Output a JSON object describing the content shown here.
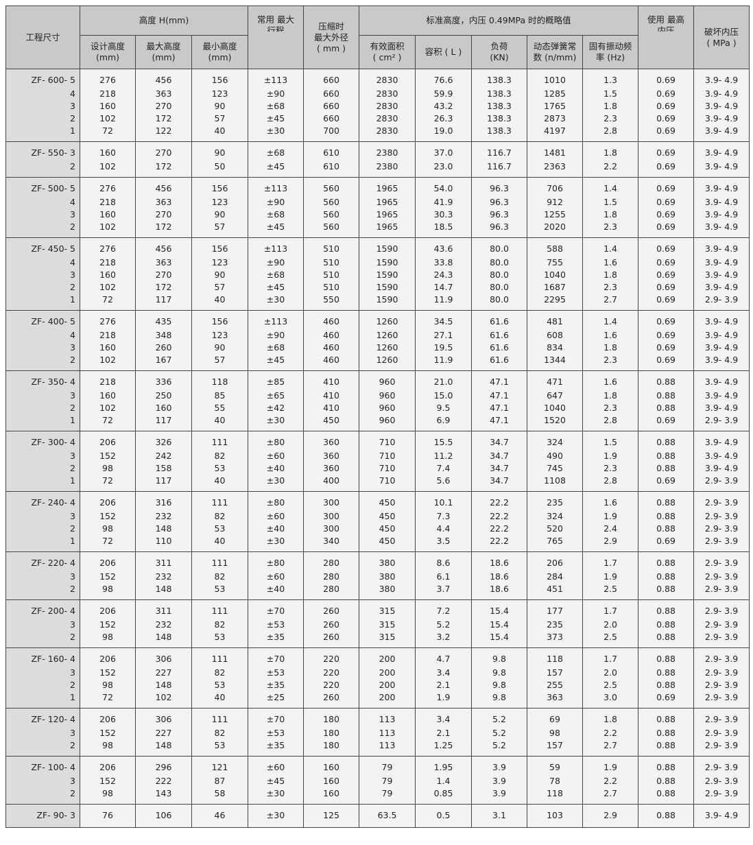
{
  "header": {
    "model": "工程尺寸",
    "height_group": "高度 H(mm)",
    "design_height": "设计高度",
    "max_height": "最大高度",
    "min_height": "最小高度",
    "mm": "(mm)",
    "stroke": "常用 最大",
    "stroke_cut": "行程",
    "max_od_1": "压缩时",
    "max_od_2": "最大外径",
    "max_od_unit": "( mm )",
    "std_group": "标准高度，内压 0.49MPa  时的概略值",
    "area": "有效面积",
    "area_unit": "( cm² )",
    "volume": "容积 ( L )",
    "load": "负荷",
    "load_unit": "(KN)",
    "spring_1": "动态弹簧常",
    "spring_2": "数 (n/mm)",
    "freq_1": "固有振动频",
    "freq_2": "率 (Hz)",
    "use_max": "使用 最高",
    "use_max_cut": "内压",
    "burst": "破坏内压",
    "burst_unit": "( MPa )"
  },
  "groups": [
    {
      "rows": [
        [
          "ZF- 600- 5",
          "276",
          "456",
          "156",
          "±113",
          "660",
          "2830",
          "76.6",
          "138.3",
          "1010",
          "1.3",
          "0.69",
          "3.9- 4.9"
        ],
        [
          "4",
          "218",
          "363",
          "123",
          "±90",
          "660",
          "2830",
          "59.9",
          "138.3",
          "1285",
          "1.5",
          "0.69",
          "3.9- 4.9"
        ],
        [
          "3",
          "160",
          "270",
          "90",
          "±68",
          "660",
          "2830",
          "43.2",
          "138.3",
          "1765",
          "1.8",
          "0.69",
          "3.9- 4.9"
        ],
        [
          "2",
          "102",
          "172",
          "57",
          "±45",
          "660",
          "2830",
          "26.3",
          "138.3",
          "2873",
          "2.3",
          "0.69",
          "3.9- 4.9"
        ],
        [
          "1",
          "72",
          "122",
          "40",
          "±30",
          "700",
          "2830",
          "19.0",
          "138.3",
          "4197",
          "2.8",
          "0.69",
          "3.9- 4.9"
        ]
      ]
    },
    {
      "rows": [
        [
          "ZF- 550- 3",
          "160",
          "270",
          "90",
          "±68",
          "610",
          "2380",
          "37.0",
          "116.7",
          "1481",
          "1.8",
          "0.69",
          "3.9- 4.9"
        ],
        [
          "2",
          "102",
          "172",
          "50",
          "±45",
          "610",
          "2380",
          "23.0",
          "116.7",
          "2363",
          "2.2",
          "0.69",
          "3.9- 4.9"
        ]
      ]
    },
    {
      "rows": [
        [
          "ZF- 500- 5",
          "276",
          "456",
          "156",
          "±113",
          "560",
          "1965",
          "54.0",
          "96.3",
          "706",
          "1.4",
          "0.69",
          "3.9- 4.9"
        ],
        [
          "4",
          "218",
          "363",
          "123",
          "±90",
          "560",
          "1965",
          "41.9",
          "96.3",
          "912",
          "1.5",
          "0.69",
          "3.9- 4.9"
        ],
        [
          "3",
          "160",
          "270",
          "90",
          "±68",
          "560",
          "1965",
          "30.3",
          "96.3",
          "1255",
          "1.8",
          "0.69",
          "3.9- 4.9"
        ],
        [
          "2",
          "102",
          "172",
          "57",
          "±45",
          "560",
          "1965",
          "18.5",
          "96.3",
          "2020",
          "2.3",
          "0.69",
          "3.9- 4.9"
        ]
      ]
    },
    {
      "rows": [
        [
          "ZF- 450- 5",
          "276",
          "456",
          "156",
          "±113",
          "510",
          "1590",
          "43.6",
          "80.0",
          "588",
          "1.4",
          "0.69",
          "3.9- 4.9"
        ],
        [
          "4",
          "218",
          "363",
          "123",
          "±90",
          "510",
          "1590",
          "33.8",
          "80.0",
          "755",
          "1.6",
          "0.69",
          "3.9- 4.9"
        ],
        [
          "3",
          "160",
          "270",
          "90",
          "±68",
          "510",
          "1590",
          "24.3",
          "80.0",
          "1040",
          "1.8",
          "0.69",
          "3.9- 4.9"
        ],
        [
          "2",
          "102",
          "172",
          "57",
          "±45",
          "510",
          "1590",
          "14.7",
          "80.0",
          "1687",
          "2.3",
          "0.69",
          "3.9- 4.9"
        ],
        [
          "1",
          "72",
          "117",
          "40",
          "±30",
          "550",
          "1590",
          "11.9",
          "80.0",
          "2295",
          "2.7",
          "0.69",
          "2.9- 3.9"
        ]
      ]
    },
    {
      "rows": [
        [
          "ZF- 400- 5",
          "276",
          "435",
          "156",
          "±113",
          "460",
          "1260",
          "34.5",
          "61.6",
          "481",
          "1.4",
          "0.69",
          "3.9- 4.9"
        ],
        [
          "4",
          "218",
          "348",
          "123",
          "±90",
          "460",
          "1260",
          "27.1",
          "61.6",
          "608",
          "1.6",
          "0.69",
          "3.9- 4.9"
        ],
        [
          "3",
          "160",
          "260",
          "90",
          "±68",
          "460",
          "1260",
          "19.5",
          "61.6",
          "834",
          "1.8",
          "0.69",
          "3.9- 4.9"
        ],
        [
          "2",
          "102",
          "167",
          "57",
          "±45",
          "460",
          "1260",
          "11.9",
          "61.6",
          "1344",
          "2.3",
          "0.69",
          "3.9- 4.9"
        ]
      ]
    },
    {
      "rows": [
        [
          "ZF- 350- 4",
          "218",
          "336",
          "118",
          "±85",
          "410",
          "960",
          "21.0",
          "47.1",
          "471",
          "1.6",
          "0.88",
          "3.9- 4.9"
        ],
        [
          "3",
          "160",
          "250",
          "85",
          "±65",
          "410",
          "960",
          "15.0",
          "47.1",
          "647",
          "1.8",
          "0.88",
          "3.9- 4.9"
        ],
        [
          "2",
          "102",
          "160",
          "55",
          "±42",
          "410",
          "960",
          "9.5",
          "47.1",
          "1040",
          "2.3",
          "0.88",
          "3.9- 4.9"
        ],
        [
          "1",
          "72",
          "117",
          "40",
          "±30",
          "450",
          "960",
          "6.9",
          "47.1",
          "1520",
          "2.8",
          "0.69",
          "2.9- 3.9"
        ]
      ]
    },
    {
      "rows": [
        [
          "ZF- 300- 4",
          "206",
          "326",
          "111",
          "±80",
          "360",
          "710",
          "15.5",
          "34.7",
          "324",
          "1.5",
          "0.88",
          "3.9- 4.9"
        ],
        [
          "3",
          "152",
          "242",
          "82",
          "±60",
          "360",
          "710",
          "11.2",
          "34.7",
          "490",
          "1.9",
          "0.88",
          "3.9- 4.9"
        ],
        [
          "2",
          "98",
          "158",
          "53",
          "±40",
          "360",
          "710",
          "7.4",
          "34.7",
          "745",
          "2.3",
          "0.88",
          "3.9- 4.9"
        ],
        [
          "1",
          "72",
          "117",
          "40",
          "±30",
          "400",
          "710",
          "5.6",
          "34.7",
          "1108",
          "2.8",
          "0.69",
          "2.9- 3.9"
        ]
      ]
    },
    {
      "rows": [
        [
          "ZF- 240- 4",
          "206",
          "316",
          "111",
          "±80",
          "300",
          "450",
          "10.1",
          "22.2",
          "235",
          "1.6",
          "0.88",
          "2.9- 3.9"
        ],
        [
          "3",
          "152",
          "232",
          "82",
          "±60",
          "300",
          "450",
          "7.3",
          "22.2",
          "324",
          "1.9",
          "0.88",
          "2.9- 3.9"
        ],
        [
          "2",
          "98",
          "148",
          "53",
          "±40",
          "300",
          "450",
          "4.4",
          "22.2",
          "520",
          "2.4",
          "0.88",
          "2.9- 3.9"
        ],
        [
          "1",
          "72",
          "110",
          "40",
          "±30",
          "340",
          "450",
          "3.5",
          "22.2",
          "765",
          "2.9",
          "0.69",
          "2.9- 3.9"
        ]
      ]
    },
    {
      "rows": [
        [
          "ZF- 220- 4",
          "206",
          "311",
          "111",
          "±80",
          "280",
          "380",
          "8.6",
          "18.6",
          "206",
          "1.7",
          "0.88",
          "2.9- 3.9"
        ],
        [
          "3",
          "152",
          "232",
          "82",
          "±60",
          "280",
          "380",
          "6.1",
          "18.6",
          "284",
          "1.9",
          "0.88",
          "2.9- 3.9"
        ],
        [
          "2",
          "98",
          "148",
          "53",
          "±40",
          "280",
          "380",
          "3.7",
          "18.6",
          "451",
          "2.5",
          "0.88",
          "2.9- 3.9"
        ]
      ]
    },
    {
      "rows": [
        [
          "ZF- 200- 4",
          "206",
          "311",
          "111",
          "±70",
          "260",
          "315",
          "7.2",
          "15.4",
          "177",
          "1.7",
          "0.88",
          "2.9- 3.9"
        ],
        [
          "3",
          "152",
          "232",
          "82",
          "±53",
          "260",
          "315",
          "5.2",
          "15.4",
          "235",
          "2.0",
          "0.88",
          "2.9- 3.9"
        ],
        [
          "2",
          "98",
          "148",
          "53",
          "±35",
          "260",
          "315",
          "3.2",
          "15.4",
          "373",
          "2.5",
          "0.88",
          "2.9- 3.9"
        ]
      ]
    },
    {
      "rows": [
        [
          "ZF- 160- 4",
          "206",
          "306",
          "111",
          "±70",
          "220",
          "200",
          "4.7",
          "9.8",
          "118",
          "1.7",
          "0.88",
          "2.9- 3.9"
        ],
        [
          "3",
          "152",
          "227",
          "82",
          "±53",
          "220",
          "200",
          "3.4",
          "9.8",
          "157",
          "2.0",
          "0.88",
          "2.9- 3.9"
        ],
        [
          "2",
          "98",
          "148",
          "53",
          "±35",
          "220",
          "200",
          "2.1",
          "9.8",
          "255",
          "2.5",
          "0.88",
          "2.9- 3.9"
        ],
        [
          "1",
          "72",
          "102",
          "40",
          "±25",
          "260",
          "200",
          "1.9",
          "9.8",
          "363",
          "3.0",
          "0.69",
          "2.9- 3.9"
        ]
      ]
    },
    {
      "rows": [
        [
          "ZF- 120- 4",
          "206",
          "306",
          "111",
          "±70",
          "180",
          "113",
          "3.4",
          "5.2",
          "69",
          "1.8",
          "0.88",
          "2.9- 3.9"
        ],
        [
          "3",
          "152",
          "227",
          "82",
          "±53",
          "180",
          "113",
          "2.1",
          "5.2",
          "98",
          "2.2",
          "0.88",
          "2.9- 3.9"
        ],
        [
          "2",
          "98",
          "148",
          "53",
          "±35",
          "180",
          "113",
          "1.25",
          "5.2",
          "157",
          "2.7",
          "0.88",
          "2.9- 3.9"
        ]
      ]
    },
    {
      "rows": [
        [
          "ZF- 100- 4",
          "206",
          "296",
          "121",
          "±60",
          "160",
          "79",
          "1.95",
          "3.9",
          "59",
          "1.9",
          "0.88",
          "2.9- 3.9"
        ],
        [
          "3",
          "152",
          "222",
          "87",
          "±45",
          "160",
          "79",
          "1.4",
          "3.9",
          "78",
          "2.2",
          "0.88",
          "2.9- 3.9"
        ],
        [
          "2",
          "98",
          "143",
          "58",
          "±30",
          "160",
          "79",
          "0.85",
          "3.9",
          "118",
          "2.7",
          "0.88",
          "2.9- 3.9"
        ]
      ]
    },
    {
      "rows": [
        [
          "ZF- 90- 3",
          "76",
          "106",
          "46",
          "±30",
          "125",
          "63.5",
          "0.5",
          "3.1",
          "103",
          "2.9",
          "0.88",
          "3.9- 4.9"
        ]
      ]
    }
  ]
}
